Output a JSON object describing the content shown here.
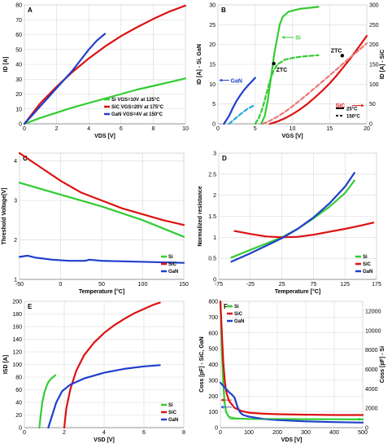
{
  "chart_data": [
    {
      "panel": "A",
      "type": "line",
      "xlabel": "VDS [V]",
      "ylabel": "ID [A]",
      "xlim": [
        0,
        10
      ],
      "ylim": [
        0,
        80
      ],
      "xticks": [
        0,
        2,
        4,
        6,
        8,
        10
      ],
      "yticks": [
        0,
        10,
        20,
        30,
        40,
        50,
        60,
        70,
        80
      ],
      "grid": true,
      "legend": "bottom-right",
      "series": [
        {
          "name": "Si VGS=10V at 125°C",
          "color": "#33cc33",
          "x": [
            0,
            1,
            2,
            3,
            4,
            5,
            6,
            7,
            8,
            9,
            10
          ],
          "y": [
            0,
            4,
            7.5,
            11,
            14,
            17,
            20,
            23,
            25.5,
            28,
            30.5
          ]
        },
        {
          "name": "SiC VGS=20V at 175°C",
          "color": "#dd1111",
          "x": [
            0,
            1,
            2,
            3,
            4,
            5,
            6,
            7,
            8,
            9,
            10
          ],
          "y": [
            0,
            14,
            25,
            35,
            44,
            52,
            59,
            65,
            70.5,
            75.5,
            79.5
          ]
        },
        {
          "name": "GaN VGS=4V at 150°C",
          "color": "#1f3fcc",
          "x": [
            0,
            0.5,
            1,
            1.5,
            2,
            2.5,
            3,
            3.5,
            4,
            4.5,
            5
          ],
          "y": [
            0,
            6,
            12,
            18,
            24,
            30,
            36,
            43,
            50,
            56,
            60.5
          ]
        }
      ]
    },
    {
      "panel": "B",
      "type": "line",
      "xlabel": "VGS [V]",
      "ylabel": "ID [A] - Si, GaN",
      "ylabel2": "ID [A] - SiC",
      "xlim": [
        0,
        20
      ],
      "ylim": [
        0,
        30
      ],
      "ylim2": [
        0,
        300
      ],
      "xticks": [
        0,
        5,
        10,
        15,
        20
      ],
      "yticks": [
        0,
        5,
        10,
        15,
        20,
        25,
        30
      ],
      "yticks2": [
        0,
        50,
        100,
        150,
        200,
        250,
        300
      ],
      "grid": true,
      "legend_entries": [
        {
          "label": "25°C",
          "style": "solid"
        },
        {
          "label": "150°C",
          "style": "dashed"
        }
      ],
      "annotations": [
        "ZTC",
        "ZTC"
      ],
      "series_labels": [
        "Si",
        "GaN",
        "SiC"
      ],
      "series": [
        {
          "group": "Si",
          "temp": "25°C",
          "color": "#33cc33",
          "axis": "left",
          "x": [
            5.8,
            6.3,
            6.7,
            7.0,
            7.3,
            7.6,
            8.0,
            8.3,
            8.7,
            9.5,
            11,
            12.5,
            13.5
          ],
          "y": [
            0,
            2,
            6,
            10,
            14,
            18,
            22,
            25,
            27,
            28.3,
            29,
            29.3,
            29.5
          ]
        },
        {
          "group": "Si",
          "temp": "150°C",
          "color": "#33cc33",
          "axis": "left",
          "x": [
            5.0,
            5.5,
            6.0,
            6.5,
            7.0,
            7.5,
            8.0,
            9,
            10,
            11,
            12,
            13.5
          ],
          "y": [
            0,
            1.5,
            4,
            7.5,
            11,
            13.5,
            15,
            16.2,
            16.6,
            16.9,
            17.1,
            17.3
          ]
        },
        {
          "group": "GaN",
          "temp": "25°C",
          "color": "#1f3fcc",
          "axis": "left",
          "x": [
            0.8,
            1.5,
            2,
            2.5,
            3,
            3.5,
            4,
            4.5,
            5
          ],
          "y": [
            0,
            2,
            4,
            5.8,
            7.2,
            8.5,
            9.6,
            10.6,
            11.6
          ]
        },
        {
          "group": "GaN",
          "temp": "150°C",
          "color": "#22aadd",
          "axis": "left",
          "x": [
            1.5,
            2,
            2.5,
            3,
            3.5,
            4,
            4.5,
            5
          ],
          "y": [
            0,
            0.8,
            1.6,
            2.4,
            3.1,
            3.8,
            4.3,
            4.8
          ]
        },
        {
          "group": "SiC",
          "temp": "25°C",
          "color": "#dd1111",
          "axis": "right",
          "x": [
            7,
            8,
            9,
            10,
            11,
            12,
            13,
            14,
            15,
            16,
            17,
            18,
            19,
            20
          ],
          "y": [
            0,
            6,
            14,
            24,
            36,
            50,
            66,
            83,
            102,
            123,
            146,
            170,
            196,
            222
          ]
        },
        {
          "group": "SiC",
          "temp": "150°C",
          "color": "#ee7777",
          "axis": "right",
          "x": [
            6,
            7,
            8,
            9,
            10,
            11,
            12,
            13,
            14,
            15,
            16,
            17,
            18,
            19,
            20
          ],
          "y": [
            0,
            8,
            18,
            30,
            44,
            59,
            74,
            90,
            106,
            122,
            138,
            155,
            171,
            187,
            203
          ]
        }
      ]
    },
    {
      "panel": "C",
      "type": "line",
      "xlabel": "Temperature [°C]",
      "ylabel": "Threshold Voltage[V]",
      "xlim": [
        -50,
        150
      ],
      "ylim": [
        1,
        4.2
      ],
      "xticks": [
        -50,
        0,
        50,
        100,
        150
      ],
      "yticks": [
        1,
        2,
        3,
        4
      ],
      "grid": true,
      "legend": "bottom-right",
      "series": [
        {
          "name": "Si",
          "color": "#33cc33",
          "x": [
            -50,
            0,
            50,
            100,
            150
          ],
          "y": [
            3.45,
            3.15,
            2.85,
            2.5,
            2.08
          ]
        },
        {
          "name": "SiC",
          "color": "#dd1111",
          "x": [
            -50,
            -25,
            0,
            25,
            50,
            75,
            100,
            125,
            150
          ],
          "y": [
            4.2,
            3.85,
            3.5,
            3.2,
            3.0,
            2.8,
            2.65,
            2.5,
            2.38
          ]
        },
        {
          "name": "GaN",
          "color": "#1f3fcc",
          "x": [
            -50,
            -40,
            -30,
            -10,
            10,
            30,
            35,
            50,
            70,
            90,
            110,
            130,
            150
          ],
          "y": [
            1.57,
            1.6,
            1.55,
            1.5,
            1.47,
            1.47,
            1.5,
            1.47,
            1.46,
            1.45,
            1.44,
            1.43,
            1.42
          ]
        }
      ]
    },
    {
      "panel": "D",
      "type": "line",
      "xlabel": "Temperature [°C]",
      "ylabel": "Normalized resistance",
      "xlim": [
        -75,
        175
      ],
      "ylim": [
        0,
        3
      ],
      "xticks": [
        -75,
        -25,
        25,
        75,
        125,
        175
      ],
      "yticks": [
        0,
        0.5,
        1,
        1.5,
        2,
        2.5,
        3
      ],
      "grid": true,
      "legend": "bottom-right",
      "series": [
        {
          "name": "Si",
          "color": "#33cc33",
          "x": [
            -55,
            -25,
            0,
            25,
            50,
            75,
            100,
            125,
            140
          ],
          "y": [
            0.52,
            0.7,
            0.85,
            1.0,
            1.2,
            1.45,
            1.72,
            2.05,
            2.35
          ]
        },
        {
          "name": "SiC",
          "color": "#dd1111",
          "x": [
            -50,
            -25,
            0,
            25,
            50,
            75,
            100,
            125,
            150,
            170
          ],
          "y": [
            1.15,
            1.08,
            1.02,
            1.0,
            1.01,
            1.06,
            1.13,
            1.2,
            1.28,
            1.35
          ]
        },
        {
          "name": "GaN",
          "color": "#1f3fcc",
          "x": [
            -55,
            -25,
            0,
            25,
            50,
            75,
            100,
            125,
            140
          ],
          "y": [
            0.42,
            0.62,
            0.8,
            0.98,
            1.2,
            1.47,
            1.8,
            2.2,
            2.53
          ]
        }
      ]
    },
    {
      "panel": "E",
      "type": "line",
      "xlabel": "VSD [V]",
      "ylabel": "ISD [A]",
      "xlim": [
        0,
        8
      ],
      "ylim": [
        0,
        200
      ],
      "xticks": [
        0,
        2,
        4,
        6,
        8
      ],
      "yticks": [
        0,
        20,
        40,
        60,
        80,
        100,
        120,
        140,
        160,
        180,
        200
      ],
      "grid": true,
      "legend": "bottom-right",
      "series": [
        {
          "name": "Si",
          "color": "#33cc33",
          "x": [
            0.75,
            0.82,
            0.9,
            1.0,
            1.1,
            1.2,
            1.35,
            1.55
          ],
          "y": [
            0,
            20,
            40,
            55,
            65,
            72,
            78,
            83
          ]
        },
        {
          "name": "SiC",
          "color": "#dd1111",
          "x": [
            2.0,
            2.1,
            2.3,
            2.6,
            3.0,
            3.5,
            4.0,
            4.5,
            5.0,
            5.5,
            6.0,
            6.5,
            6.8
          ],
          "y": [
            0,
            30,
            60,
            90,
            115,
            135,
            150,
            162,
            172,
            181,
            188,
            195,
            198
          ]
        },
        {
          "name": "GaN",
          "color": "#1f3fcc",
          "x": [
            1.2,
            1.4,
            1.6,
            1.9,
            2.3,
            3.0,
            4.0,
            5.0,
            6.0,
            6.8
          ],
          "y": [
            0,
            20,
            40,
            58,
            68,
            78,
            87,
            93,
            97,
            99
          ]
        }
      ]
    },
    {
      "panel": "F",
      "type": "line",
      "xlabel": "VDS [V]",
      "ylabel": "Coss [pF] - SiC, GaN",
      "ylabel2": "Coss [pF] - Si",
      "xlim": [
        0,
        500
      ],
      "ylim": [
        0,
        800
      ],
      "ylim2": [
        0,
        13000
      ],
      "xticks": [
        0,
        100,
        200,
        300,
        400,
        500
      ],
      "yticks": [
        0,
        100,
        200,
        300,
        400,
        500,
        600,
        700,
        800
      ],
      "yticks2": [
        0,
        2000,
        4000,
        6000,
        8000,
        10000,
        12000
      ],
      "grid": true,
      "legend": "top-left",
      "series": [
        {
          "name": "Si",
          "color": "#33cc33",
          "axis": "right",
          "x": [
            0,
            5,
            10,
            15,
            20,
            30,
            50,
            100,
            200,
            300,
            400,
            500
          ],
          "y": [
            13000,
            8000,
            4500,
            2500,
            1600,
            1100,
            950,
            900,
            880,
            870,
            860,
            850
          ]
        },
        {
          "name": "SiC",
          "color": "#dd1111",
          "axis": "left",
          "x": [
            0,
            5,
            10,
            15,
            20,
            30,
            50,
            75,
            100,
            150,
            200,
            300,
            400,
            500
          ],
          "y": [
            800,
            600,
            420,
            300,
            230,
            170,
            125,
            105,
            95,
            88,
            85,
            82,
            80,
            80
          ]
        },
        {
          "name": "GaN",
          "color": "#1f3fcc",
          "axis": "left",
          "x": [
            0,
            10,
            20,
            30,
            40,
            50,
            60,
            70,
            80,
            100,
            150,
            200,
            300,
            400,
            500
          ],
          "y": [
            285,
            265,
            245,
            225,
            210,
            190,
            130,
            95,
            80,
            70,
            55,
            48,
            40,
            35,
            32
          ]
        }
      ]
    }
  ]
}
